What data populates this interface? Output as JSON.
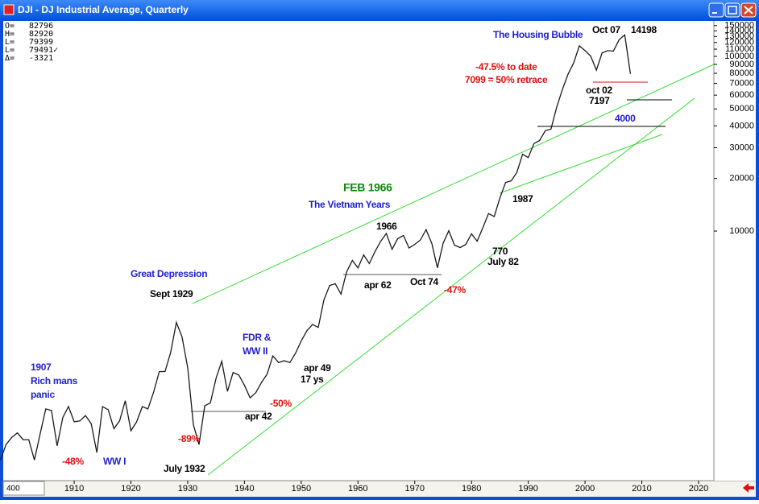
{
  "chart_data": {
    "type": "line",
    "title": "DJI - DJ Industrial Average, Quarterly",
    "readout": [
      {
        "label": "O=",
        "value": 82796
      },
      {
        "label": "H=",
        "value": 82920
      },
      {
        "label": "L=",
        "value": 79399
      },
      {
        "label": "L=",
        "value": 79491,
        "value_label": "79491✓"
      },
      {
        "label": "Δ=",
        "value": -3321
      }
    ],
    "scale_box": 400,
    "log_scale": true,
    "x": [
      1897,
      1898,
      1899,
      1900,
      1901,
      1902,
      1903,
      1904,
      1905,
      1906,
      1907,
      1908,
      1909,
      1910,
      1911,
      1912,
      1913,
      1914,
      1915,
      1916,
      1917,
      1918,
      1919,
      1920,
      1921,
      1922,
      1923,
      1924,
      1925,
      1926,
      1927,
      1928,
      1929,
      1930,
      1931,
      1932,
      1933,
      1934,
      1935,
      1936,
      1937,
      1938,
      1939,
      1940,
      1941,
      1942,
      1943,
      1944,
      1945,
      1946,
      1947,
      1948,
      1949,
      1950,
      1951,
      1952,
      1953,
      1954,
      1955,
      1956,
      1957,
      1958,
      1959,
      1960,
      1961,
      1962,
      1963,
      1964,
      1965,
      1966,
      1967,
      1968,
      1969,
      1970,
      1971,
      1972,
      1973,
      1974,
      1975,
      1976,
      1977,
      1978,
      1979,
      1980,
      1981,
      1982,
      1983,
      1984,
      1985,
      1986,
      1987,
      1988,
      1989,
      1990,
      1991,
      1992,
      1993,
      1994,
      1995,
      1996,
      1997,
      1998,
      1999,
      2000,
      2001,
      2002,
      2003,
      2004,
      2005,
      2006,
      2007,
      2008
    ],
    "series": [
      {
        "name": "DJI",
        "color": "#1a1a1a",
        "values": [
          490,
          600,
          660,
          700,
          640,
          640,
          490,
          690,
          960,
          940,
          590,
          860,
          990,
          810,
          820,
          880,
          790,
          540,
          990,
          950,
          740,
          820,
          1070,
          720,
          810,
          990,
          960,
          1200,
          1570,
          1570,
          2020,
          3000,
          2480,
          1650,
          780,
          600,
          1000,
          1040,
          1440,
          1800,
          1210,
          1550,
          1500,
          1310,
          1110,
          1190,
          1360,
          1520,
          1930,
          1770,
          1810,
          1770,
          2000,
          2350,
          2690,
          2920,
          2810,
          4040,
          4880,
          5000,
          4360,
          5840,
          6790,
          6160,
          7310,
          6520,
          7630,
          8740,
          9690,
          7860,
          9050,
          9440,
          8000,
          8390,
          8900,
          10200,
          8510,
          6160,
          8520,
          10050,
          8310,
          8050,
          8390,
          9640,
          8750,
          10470,
          12590,
          12120,
          15470,
          18960,
          19390,
          21690,
          27530,
          26340,
          31690,
          33010,
          37540,
          38340,
          51170,
          64480,
          79080,
          91810,
          114970,
          107870,
          100220,
          83420,
          104540,
          107830,
          107180,
          124630,
          132650,
          79491
        ]
      }
    ],
    "xlim": [
      1897.5,
      2022.7
    ],
    "xticks": [
      1900,
      1910,
      1920,
      1930,
      1940,
      1950,
      1960,
      1970,
      1980,
      1990,
      2000,
      2010,
      2020
    ],
    "ylim": [
      373,
      159500
    ],
    "yticks": [
      10000,
      20000,
      30000,
      40000,
      50000,
      60000,
      70000,
      80000,
      90000,
      100000,
      110000,
      120000,
      130000,
      140000,
      150000
    ],
    "annotations": [
      "The Housing Bubble",
      "Oct 07",
      "14198",
      "-47.5% to date",
      "7099 = 50% retrace",
      "oct 02",
      "7197",
      "4000",
      "FEB 1966",
      "The Vietnam Years",
      "1987",
      "1966",
      "770",
      "July 82",
      "apr 62",
      "Oct 74",
      "-47%",
      "Great Depression",
      "Sept 1929",
      "FDR &",
      "WW II",
      "apr 49",
      "17 ys",
      "-50%",
      "apr  42",
      "1907",
      "Rich mans",
      "panic",
      "-89%",
      "-48%",
      "WW I",
      "July 1932"
    ]
  }
}
